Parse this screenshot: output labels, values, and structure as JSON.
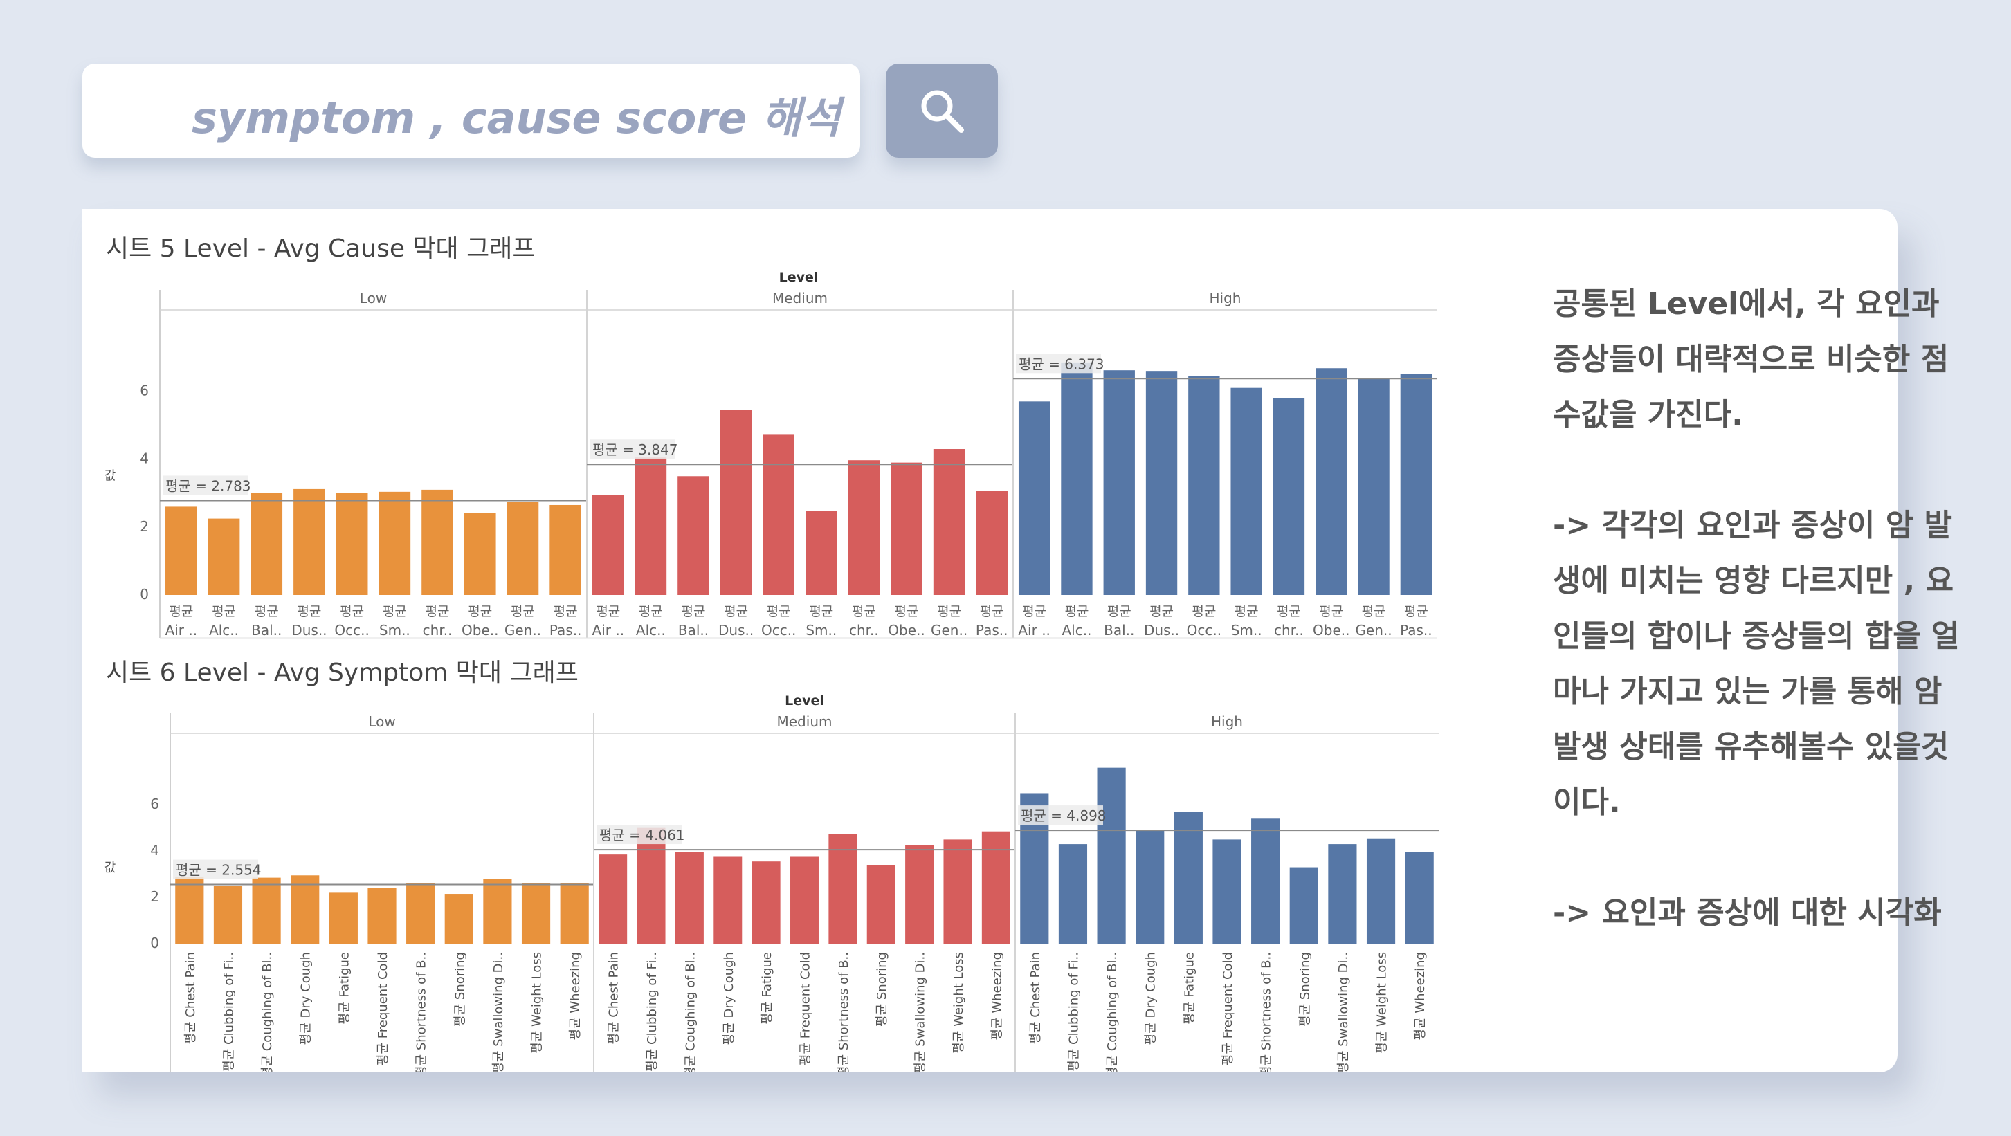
{
  "search": {
    "text": "symptom , cause score 해석",
    "button_icon": "search-icon"
  },
  "colors": {
    "low": "#e8923c",
    "medium": "#d65d5c",
    "high": "#5677a6"
  },
  "side_text": [
    "공통된 Level에서, 각 요인과 증상들이 대략적으로 비슷한 점수값을 가진다.",
    "-> 각각의 요인과 증상이 암 발생에 미치는 영향 다르지만 , 요인들의 합이나 증상들의 합을 얼마나 가지고 있는 가를 통해 암발생 상태를 유추해볼수 있을것이다.",
    "-> 요인과 증상에 대한 시각화"
  ],
  "chart_data": [
    {
      "type": "bar",
      "title": "시트 5 Level - Avg Cause 막대 그래프",
      "level_header": "Level",
      "levels": [
        "Low",
        "Medium",
        "High"
      ],
      "ylabel": "값",
      "ylim": [
        0,
        7.5
      ],
      "yticks": [
        0,
        2,
        4,
        6
      ],
      "label_style": "horizontal",
      "measure_prefix": "평균",
      "categories": [
        "Air ..",
        "Alc..",
        "Bal..",
        "Dus..",
        "Occ..",
        "Sm..",
        "chr..",
        "Obe..",
        "Gen..",
        "Pas.."
      ],
      "series": [
        {
          "values": [
            2.6,
            2.25,
            3.0,
            3.12,
            3.0,
            3.04,
            3.1,
            2.42,
            2.75,
            2.65
          ],
          "avg_label": "평균 = 2.783",
          "avg": 2.783
        },
        {
          "values": [
            2.95,
            4.05,
            3.5,
            5.45,
            4.72,
            2.48,
            3.97,
            3.9,
            4.3,
            3.07
          ],
          "avg_label": "평균 = 3.847",
          "avg": 3.847
        },
        {
          "values": [
            5.7,
            6.85,
            6.62,
            6.6,
            6.45,
            6.1,
            5.8,
            6.68,
            6.38,
            6.52
          ],
          "avg_label": "평균 = 6.373",
          "avg": 6.373
        }
      ]
    },
    {
      "type": "bar",
      "title": "시트 6  Level - Avg Symptom 막대 그래프",
      "level_header": "Level",
      "levels": [
        "Low",
        "Medium",
        "High"
      ],
      "ylabel": "값",
      "ylim": [
        0,
        7.5
      ],
      "yticks": [
        0,
        2,
        4,
        6
      ],
      "label_style": "vertical",
      "measure_prefix": "평균",
      "categories": [
        "Chest Pain",
        "Clubbing of Fi..",
        "Coughing of Bl..",
        "Dry Cough",
        "Fatigue",
        "Frequent Cold",
        "Shortness of B..",
        "Snoring",
        "Swallowing Di..",
        "Weight Loss",
        "Wheezing"
      ],
      "series": [
        {
          "values": [
            2.9,
            2.5,
            2.85,
            2.95,
            2.2,
            2.4,
            2.6,
            2.15,
            2.8,
            2.6,
            2.62
          ],
          "avg_label": "평균 = 2.554",
          "avg": 2.554
        },
        {
          "values": [
            3.85,
            5.0,
            3.95,
            3.75,
            3.55,
            3.75,
            4.75,
            3.4,
            4.25,
            4.5,
            4.85
          ],
          "avg_label": "평균 = 4.061",
          "avg": 4.061
        },
        {
          "values": [
            6.5,
            4.3,
            7.6,
            4.9,
            5.7,
            4.5,
            5.4,
            3.3,
            4.3,
            4.55,
            3.95
          ],
          "avg_label": "평균 = 4.898",
          "avg": 4.898
        }
      ]
    }
  ]
}
